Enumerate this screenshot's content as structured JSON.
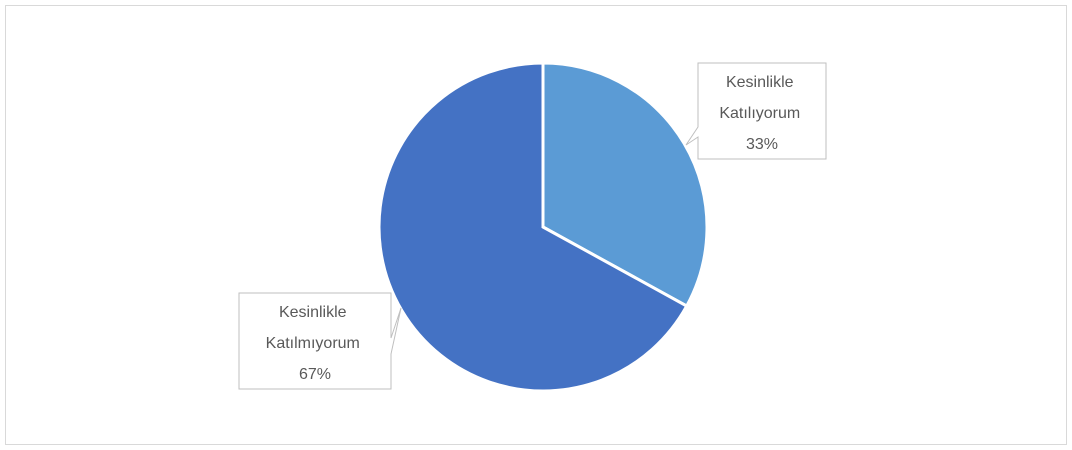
{
  "chart_data": {
    "type": "pie",
    "title": "",
    "start_angle_deg": 0,
    "direction": "clockwise",
    "slices": [
      {
        "label_lines": [
          "Kesinlikle",
          "Katılıyorum"
        ],
        "value": 33,
        "value_label": "33%",
        "color": "#5b9bd5"
      },
      {
        "label_lines": [
          "Kesinlikle",
          "Katılmıyorum"
        ],
        "value": 67,
        "value_label": "67%",
        "color": "#4472c4"
      }
    ],
    "legend": "none",
    "data_labels": "callouts"
  }
}
